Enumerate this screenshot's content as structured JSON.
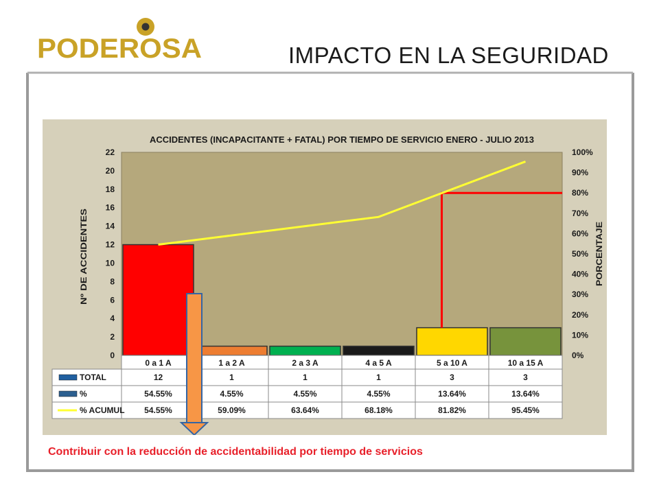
{
  "slide": {
    "title": "IMPACTO EN LA SEGURIDAD",
    "caption": "Contribuir con la reducción de accidentabilidad por tiempo de servicios"
  },
  "logo": {
    "text": "PODEROSA",
    "color": "#c9a227"
  },
  "chart_data": {
    "type": "bar",
    "title": "ACCIDENTES (INCAPACITANTE +  FATAL) POR  TIEMPO DE SERVICIO ENERO - JULIO 2013",
    "ylabel": "Nº DE ACCIDENTES",
    "y2label": "PORCENTAJE",
    "ylim": [
      0,
      22
    ],
    "y2lim": [
      0,
      100
    ],
    "yticks": [
      "0",
      "2",
      "4",
      "6",
      "8",
      "10",
      "12",
      "14",
      "16",
      "18",
      "20",
      "22"
    ],
    "y2ticks": [
      "0%",
      "10%",
      "20%",
      "30%",
      "40%",
      "50%",
      "60%",
      "70%",
      "80%",
      "90%",
      "100%"
    ],
    "categories": [
      "0 a 1 A",
      "1 a 2 A",
      "2 a 3 A",
      "4 a 5 A",
      "5 a 10 A",
      "10 a 15 A"
    ],
    "bar_colors": [
      "#ff0000",
      "#ed7d31",
      "#00b050",
      "#1a1a1a",
      "#ffd700",
      "#77933c"
    ],
    "plot_background": "#b5a87c",
    "series": [
      {
        "name": "TOTAL",
        "values": [
          12,
          1,
          1,
          1,
          3,
          3
        ]
      },
      {
        "name": "%",
        "values": [
          54.55,
          4.55,
          4.55,
          4.55,
          13.64,
          13.64
        ]
      },
      {
        "name": "% ACUMUL",
        "values": [
          54.55,
          59.09,
          63.64,
          68.18,
          81.82,
          95.45
        ]
      }
    ],
    "table": {
      "rows": [
        {
          "label": "TOTAL",
          "cells": [
            "12",
            "1",
            "1",
            "1",
            "3",
            "3"
          ]
        },
        {
          "label": "%",
          "cells": [
            "54.55%",
            "4.55%",
            "4.55%",
            "4.55%",
            "13.64%",
            "13.64%"
          ]
        },
        {
          "label": "% ACUMUL",
          "cells": [
            "54.55%",
            "59.09%",
            "63.64%",
            "68.18%",
            "81.82%",
            "95.45%"
          ]
        }
      ]
    },
    "pareto_line": {
      "level_percent": 80,
      "from_category": "5 a 10 A",
      "color": "#ff0000"
    },
    "cumulative_line_color": "#ffff33"
  }
}
